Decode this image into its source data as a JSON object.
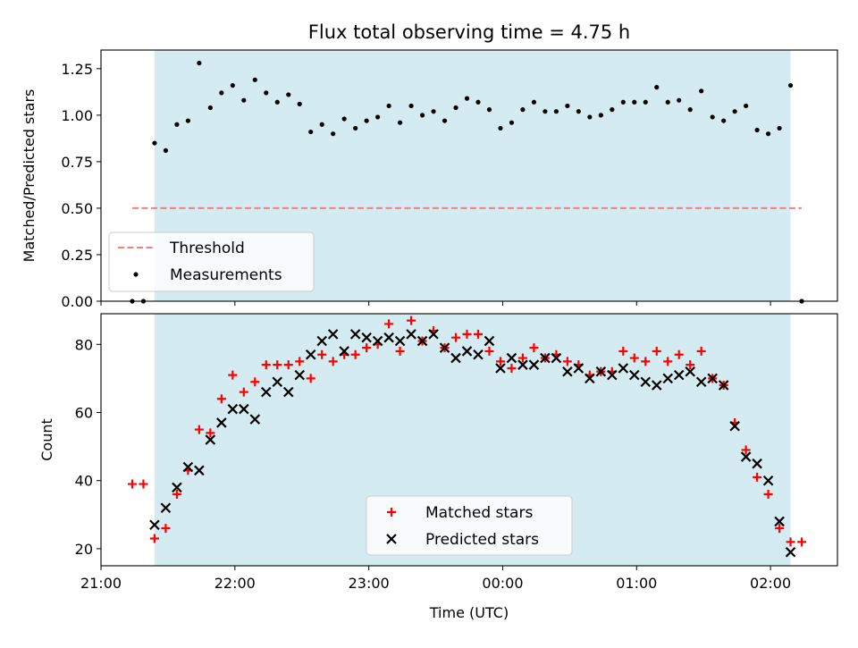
{
  "title": "Flux total observing time = 4.75 h",
  "xlabel": "Time (UTC)",
  "colors": {
    "shade": "#d4ebf1",
    "threshold": "#f08080",
    "measurement": "#000000",
    "matched": "#ff0000",
    "predicted": "#000000"
  },
  "chart_data": [
    {
      "type": "scatter",
      "ylabel": "Matched/Predicted stars",
      "ylim": [
        0,
        1.35
      ],
      "yticks": [
        "0.00",
        "0.25",
        "0.50",
        "0.75",
        "1.00",
        "1.25"
      ],
      "ytick_values": [
        0,
        0.25,
        0.5,
        0.75,
        1.0,
        1.25
      ],
      "xlim": [
        "21:00",
        "02:30"
      ],
      "shaded_range": [
        "21:24",
        "02:09"
      ],
      "legend": {
        "placement": "lower-left",
        "entries": [
          "Threshold",
          "Measurements"
        ]
      },
      "series": [
        {
          "name": "Threshold",
          "kind": "dashed-line",
          "x": [
            "21:14",
            "02:14"
          ],
          "y": [
            0.5,
            0.5
          ]
        },
        {
          "name": "Measurements",
          "kind": "points",
          "x": [
            "21:14",
            "21:19",
            "21:24",
            "21:29",
            "21:34",
            "21:39",
            "21:44",
            "21:49",
            "21:54",
            "21:59",
            "22:04",
            "22:09",
            "22:14",
            "22:19",
            "22:24",
            "22:29",
            "22:34",
            "22:39",
            "22:44",
            "22:49",
            "22:54",
            "22:59",
            "23:04",
            "23:09",
            "23:14",
            "23:19",
            "23:24",
            "23:29",
            "23:34",
            "23:39",
            "23:44",
            "23:49",
            "23:54",
            "23:59",
            "00:04",
            "00:09",
            "00:14",
            "00:19",
            "00:24",
            "00:29",
            "00:34",
            "00:39",
            "00:44",
            "00:49",
            "00:54",
            "00:59",
            "01:04",
            "01:09",
            "01:14",
            "01:19",
            "01:24",
            "01:29",
            "01:34",
            "01:39",
            "01:44",
            "01:49",
            "01:54",
            "01:59",
            "02:04",
            "02:09",
            "02:14"
          ],
          "y": [
            0.0,
            0.0,
            0.85,
            0.81,
            0.95,
            0.97,
            1.28,
            1.04,
            1.12,
            1.16,
            1.08,
            1.19,
            1.12,
            1.07,
            1.11,
            1.06,
            0.91,
            0.95,
            0.9,
            0.98,
            0.93,
            0.97,
            0.99,
            1.05,
            0.96,
            1.05,
            1.0,
            1.02,
            0.97,
            1.04,
            1.09,
            1.07,
            1.03,
            0.93,
            0.96,
            1.03,
            1.07,
            1.02,
            1.02,
            1.05,
            1.02,
            0.99,
            1.0,
            1.03,
            1.07,
            1.07,
            1.07,
            1.15,
            1.07,
            1.08,
            1.03,
            1.13,
            0.99,
            0.97,
            1.02,
            1.05,
            0.92,
            0.9,
            0.93,
            1.16,
            0.0
          ]
        }
      ]
    },
    {
      "type": "scatter",
      "ylabel": "Count",
      "ylim": [
        15,
        89
      ],
      "yticks": [
        "20",
        "40",
        "60",
        "80"
      ],
      "ytick_values": [
        20,
        40,
        60,
        80
      ],
      "xlim": [
        "21:00",
        "02:30"
      ],
      "xticks": [
        "21:00",
        "22:00",
        "23:00",
        "00:00",
        "01:00",
        "02:00"
      ],
      "shaded_range": [
        "21:24",
        "02:09"
      ],
      "legend": {
        "placement": "lower-center",
        "entries": [
          "Matched stars",
          "Predicted stars"
        ]
      },
      "series": [
        {
          "name": "Matched stars",
          "marker": "plus",
          "x": [
            "21:14",
            "21:19",
            "21:24",
            "21:29",
            "21:34",
            "21:39",
            "21:44",
            "21:49",
            "21:54",
            "21:59",
            "22:04",
            "22:09",
            "22:14",
            "22:19",
            "22:24",
            "22:29",
            "22:34",
            "22:39",
            "22:44",
            "22:49",
            "22:54",
            "22:59",
            "23:04",
            "23:09",
            "23:14",
            "23:19",
            "23:24",
            "23:29",
            "23:34",
            "23:39",
            "23:44",
            "23:49",
            "23:54",
            "23:59",
            "00:04",
            "00:09",
            "00:14",
            "00:19",
            "00:24",
            "00:29",
            "00:34",
            "00:39",
            "00:44",
            "00:49",
            "00:54",
            "00:59",
            "01:04",
            "01:09",
            "01:14",
            "01:19",
            "01:24",
            "01:29",
            "01:34",
            "01:39",
            "01:44",
            "01:49",
            "01:54",
            "01:59",
            "02:04",
            "02:09",
            "02:14"
          ],
          "y": [
            39,
            39,
            23,
            26,
            36,
            43,
            55,
            54,
            64,
            71,
            66,
            69,
            74,
            74,
            74,
            75,
            70,
            77,
            75,
            77,
            77,
            79,
            80,
            86,
            78,
            87,
            81,
            84,
            79,
            82,
            83,
            83,
            78,
            75,
            73,
            76,
            79,
            76,
            77,
            75,
            74,
            71,
            72,
            72,
            78,
            76,
            75,
            78,
            75,
            77,
            74,
            78,
            70,
            68,
            57,
            49,
            41,
            36,
            26,
            22,
            22
          ]
        },
        {
          "name": "Predicted stars",
          "marker": "x",
          "x": [
            "21:24",
            "21:29",
            "21:34",
            "21:39",
            "21:44",
            "21:49",
            "21:54",
            "21:59",
            "22:04",
            "22:09",
            "22:14",
            "22:19",
            "22:24",
            "22:29",
            "22:34",
            "22:39",
            "22:44",
            "22:49",
            "22:54",
            "22:59",
            "23:04",
            "23:09",
            "23:14",
            "23:19",
            "23:24",
            "23:29",
            "23:34",
            "23:39",
            "23:44",
            "23:49",
            "23:54",
            "23:59",
            "00:04",
            "00:09",
            "00:14",
            "00:19",
            "00:24",
            "00:29",
            "00:34",
            "00:39",
            "00:44",
            "00:49",
            "00:54",
            "00:59",
            "01:04",
            "01:09",
            "01:14",
            "01:19",
            "01:24",
            "01:29",
            "01:34",
            "01:39",
            "01:44",
            "01:49",
            "01:54",
            "01:59",
            "02:04",
            "02:09"
          ],
          "y": [
            27,
            32,
            38,
            44,
            43,
            52,
            57,
            61,
            61,
            58,
            66,
            69,
            66,
            71,
            77,
            81,
            83,
            78,
            83,
            82,
            81,
            82,
            81,
            83,
            81,
            83,
            79,
            76,
            78,
            77,
            81,
            73,
            76,
            74,
            74,
            76,
            76,
            72,
            73,
            70,
            72,
            71,
            73,
            71,
            69,
            68,
            70,
            71,
            72,
            69,
            70,
            68,
            56,
            47,
            45,
            40,
            28,
            19
          ]
        }
      ]
    }
  ]
}
